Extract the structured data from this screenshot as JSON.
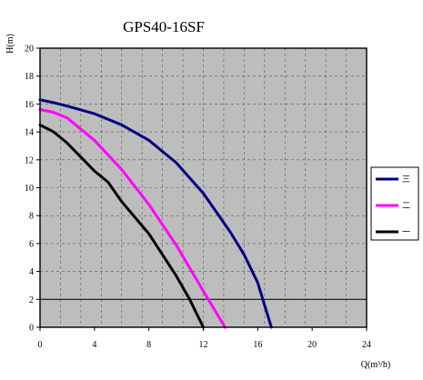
{
  "chart_data": {
    "type": "line",
    "title": "GPS40-16SF",
    "xlabel": "Q(m³/h)",
    "ylabel": "H(m)",
    "xlim": [
      0,
      24
    ],
    "ylim": [
      0,
      20
    ],
    "xticks": [
      0,
      4,
      8,
      12,
      16,
      20,
      24
    ],
    "yticks": [
      0,
      2,
      4,
      6,
      8,
      10,
      12,
      14,
      16,
      18,
      20
    ],
    "grid": true,
    "background": "#bdbdbd",
    "legend_position": "right",
    "reference_line": {
      "y": 2,
      "color": "#000000"
    },
    "series": [
      {
        "name": "三",
        "color": "#00007f",
        "points": [
          [
            0,
            16.3
          ],
          [
            1,
            16.1
          ],
          [
            2,
            15.85
          ],
          [
            4,
            15.3
          ],
          [
            6,
            14.5
          ],
          [
            8,
            13.4
          ],
          [
            10,
            11.8
          ],
          [
            12,
            9.6
          ],
          [
            14,
            6.8
          ],
          [
            15,
            5.2
          ],
          [
            16,
            3.2
          ],
          [
            17,
            0
          ]
        ]
      },
      {
        "name": "二",
        "color": "#ff00ff",
        "points": [
          [
            0,
            15.6
          ],
          [
            1,
            15.4
          ],
          [
            2,
            15.0
          ],
          [
            4,
            13.4
          ],
          [
            6,
            11.3
          ],
          [
            8,
            8.8
          ],
          [
            10,
            5.9
          ],
          [
            12,
            2.6
          ],
          [
            13.6,
            0
          ]
        ]
      },
      {
        "name": "一",
        "color": "#000000",
        "points": [
          [
            0,
            14.5
          ],
          [
            1,
            14.0
          ],
          [
            2,
            13.2
          ],
          [
            4,
            11.2
          ],
          [
            5,
            10.4
          ],
          [
            6,
            9.0
          ],
          [
            8,
            6.7
          ],
          [
            10,
            3.7
          ],
          [
            11,
            2.0
          ],
          [
            12,
            0
          ]
        ]
      }
    ]
  }
}
